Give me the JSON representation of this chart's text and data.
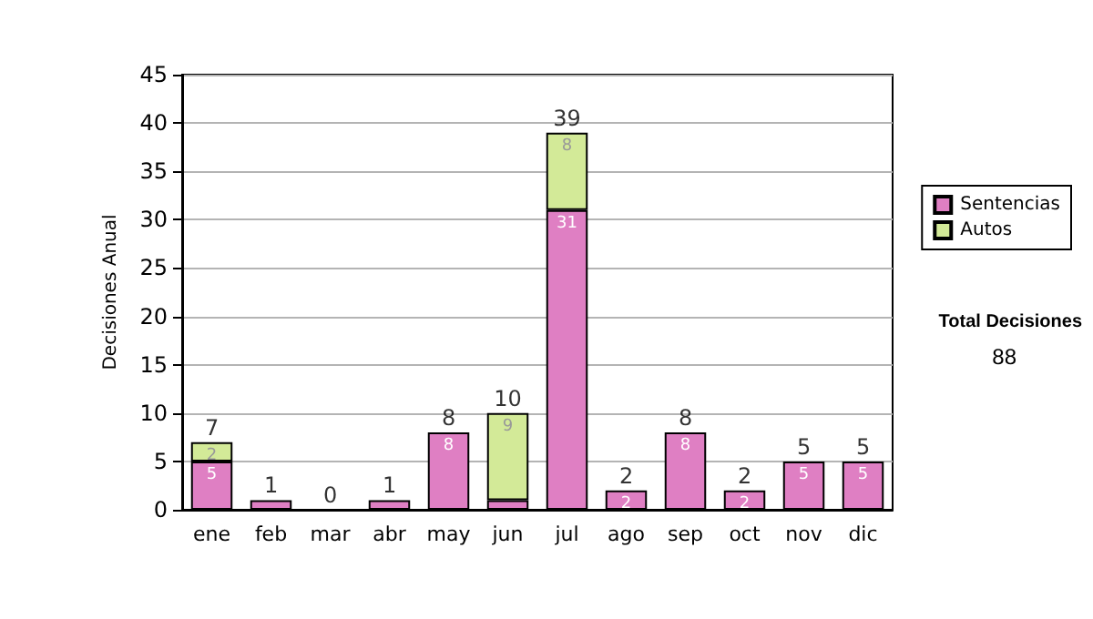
{
  "chart_data": {
    "type": "bar",
    "stacked": true,
    "ylabel": "Decisiones Anual",
    "categories": [
      "ene",
      "feb",
      "mar",
      "abr",
      "may",
      "jun",
      "jul",
      "ago",
      "sep",
      "oct",
      "nov",
      "dic"
    ],
    "series": [
      {
        "name": "Sentencias",
        "color": "#df7fc3",
        "values": [
          5,
          1,
          0,
          1,
          8,
          1,
          31,
          2,
          8,
          2,
          5,
          5
        ],
        "value_labels": [
          "5",
          null,
          null,
          null,
          "8",
          null,
          "31",
          "2",
          "8",
          "2",
          "5",
          "5"
        ]
      },
      {
        "name": "Autos",
        "color": "#d3ea98",
        "values": [
          2,
          0,
          0,
          0,
          0,
          9,
          8,
          0,
          0,
          0,
          0,
          0
        ],
        "value_labels": [
          "2",
          null,
          null,
          null,
          null,
          "9",
          "8",
          null,
          null,
          null,
          null,
          null
        ]
      }
    ],
    "totals": [
      "7",
      "1",
      "0",
      "1",
      "8",
      "10",
      "39",
      "2",
      "8",
      "2",
      "5",
      "5"
    ],
    "ylim": [
      0,
      45
    ],
    "yticks": [
      0,
      5,
      10,
      15,
      20,
      25,
      30,
      35,
      40,
      45
    ],
    "grid": "y",
    "legend": "right",
    "annotations": [
      "Total Decisiones",
      "88"
    ]
  }
}
